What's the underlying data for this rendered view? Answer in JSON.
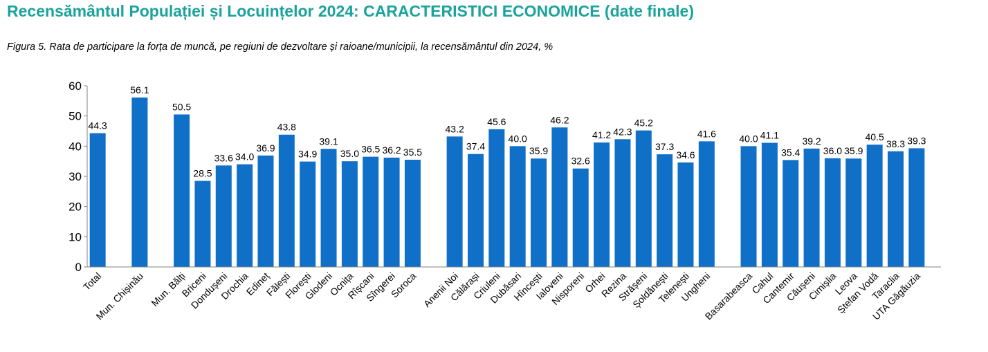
{
  "header": {
    "title": "Recensământul Populației și Locuințelor 2024: CARACTERISTICI ECONOMICE (date finale)",
    "caption": "Figura 5. Rata de participare la forța de muncă, pe regiuni de dezvoltare și raioane/municipii, la recensământul din 2024, %"
  },
  "colors": {
    "bar": "#1070C8",
    "title": "#1aa29c",
    "axis": "#808080"
  },
  "chart_data": {
    "type": "bar",
    "title": "Figura 5. Rata de participare la forța de muncă, pe regiuni de dezvoltare și raioane/municipii, la recensământul din 2024, %",
    "xlabel": "",
    "ylabel": "",
    "ylim": [
      0,
      60
    ],
    "yticks": [
      0,
      10,
      20,
      30,
      40,
      50,
      60
    ],
    "grid": false,
    "groups": [
      [
        "Total"
      ],
      [
        "Mun. Chișinău"
      ],
      [
        "Mun. Bălți",
        "Briceni",
        "Dondușeni",
        "Drochia",
        "Edineț",
        "Fălești",
        "Florești",
        "Glodeni",
        "Ocnița",
        "Rîșcani",
        "Sîngerei",
        "Soroca"
      ],
      [
        "Anenii Noi",
        "Călărași",
        "Criuleni",
        "Dubăsari",
        "Hîncești",
        "Ialoveni",
        "Nisporeni",
        "Orhei",
        "Rezina",
        "Strășeni",
        "Șoldănești",
        "Telenești",
        "Ungheni"
      ],
      [
        "Basarabeasca",
        "Cahul",
        "Cantemir",
        "Căușeni",
        "Cimișlia",
        "Leova",
        "Ștefan Vodă",
        "Taraclia",
        "UTA Găgăuzia"
      ]
    ],
    "categories": [
      "Total",
      "Mun. Chișinău",
      "Mun. Bălți",
      "Briceni",
      "Dondușeni",
      "Drochia",
      "Edineț",
      "Fălești",
      "Florești",
      "Glodeni",
      "Ocnița",
      "Rîșcani",
      "Sîngerei",
      "Soroca",
      "Anenii Noi",
      "Călărași",
      "Criuleni",
      "Dubăsari",
      "Hîncești",
      "Ialoveni",
      "Nisporeni",
      "Orhei",
      "Rezina",
      "Strășeni",
      "Șoldănești",
      "Telenești",
      "Ungheni",
      "Basarabeasca",
      "Cahul",
      "Cantemir",
      "Căușeni",
      "Cimișlia",
      "Leova",
      "Ștefan Vodă",
      "Taraclia",
      "UTA Găgăuzia"
    ],
    "values": [
      44.3,
      56.1,
      50.5,
      28.5,
      33.6,
      34.0,
      36.9,
      43.8,
      34.9,
      39.1,
      35.0,
      36.5,
      36.2,
      35.5,
      43.2,
      37.4,
      45.6,
      40.0,
      35.9,
      46.2,
      32.6,
      41.2,
      42.3,
      45.2,
      37.3,
      34.6,
      41.6,
      40.0,
      41.1,
      35.4,
      39.2,
      36.0,
      35.9,
      40.5,
      38.3,
      39.3
    ],
    "value_labels": [
      "44.3",
      "56.1",
      "50.5",
      "28.5",
      "33.6",
      "34.0",
      "36.9",
      "43.8",
      "34.9",
      "39.1",
      "35.0",
      "36.5",
      "36.2",
      "35.5",
      "43.2",
      "37.4",
      "45.6",
      "40.0",
      "35.9",
      "46.2",
      "32.6",
      "41.2",
      "42.3",
      "45.2",
      "37.3",
      "34.6",
      "41.6",
      "40.0",
      "41.1",
      "35.4",
      "39.2",
      "36.0",
      "35.9",
      "40.5",
      "38.3",
      "39.3"
    ]
  }
}
